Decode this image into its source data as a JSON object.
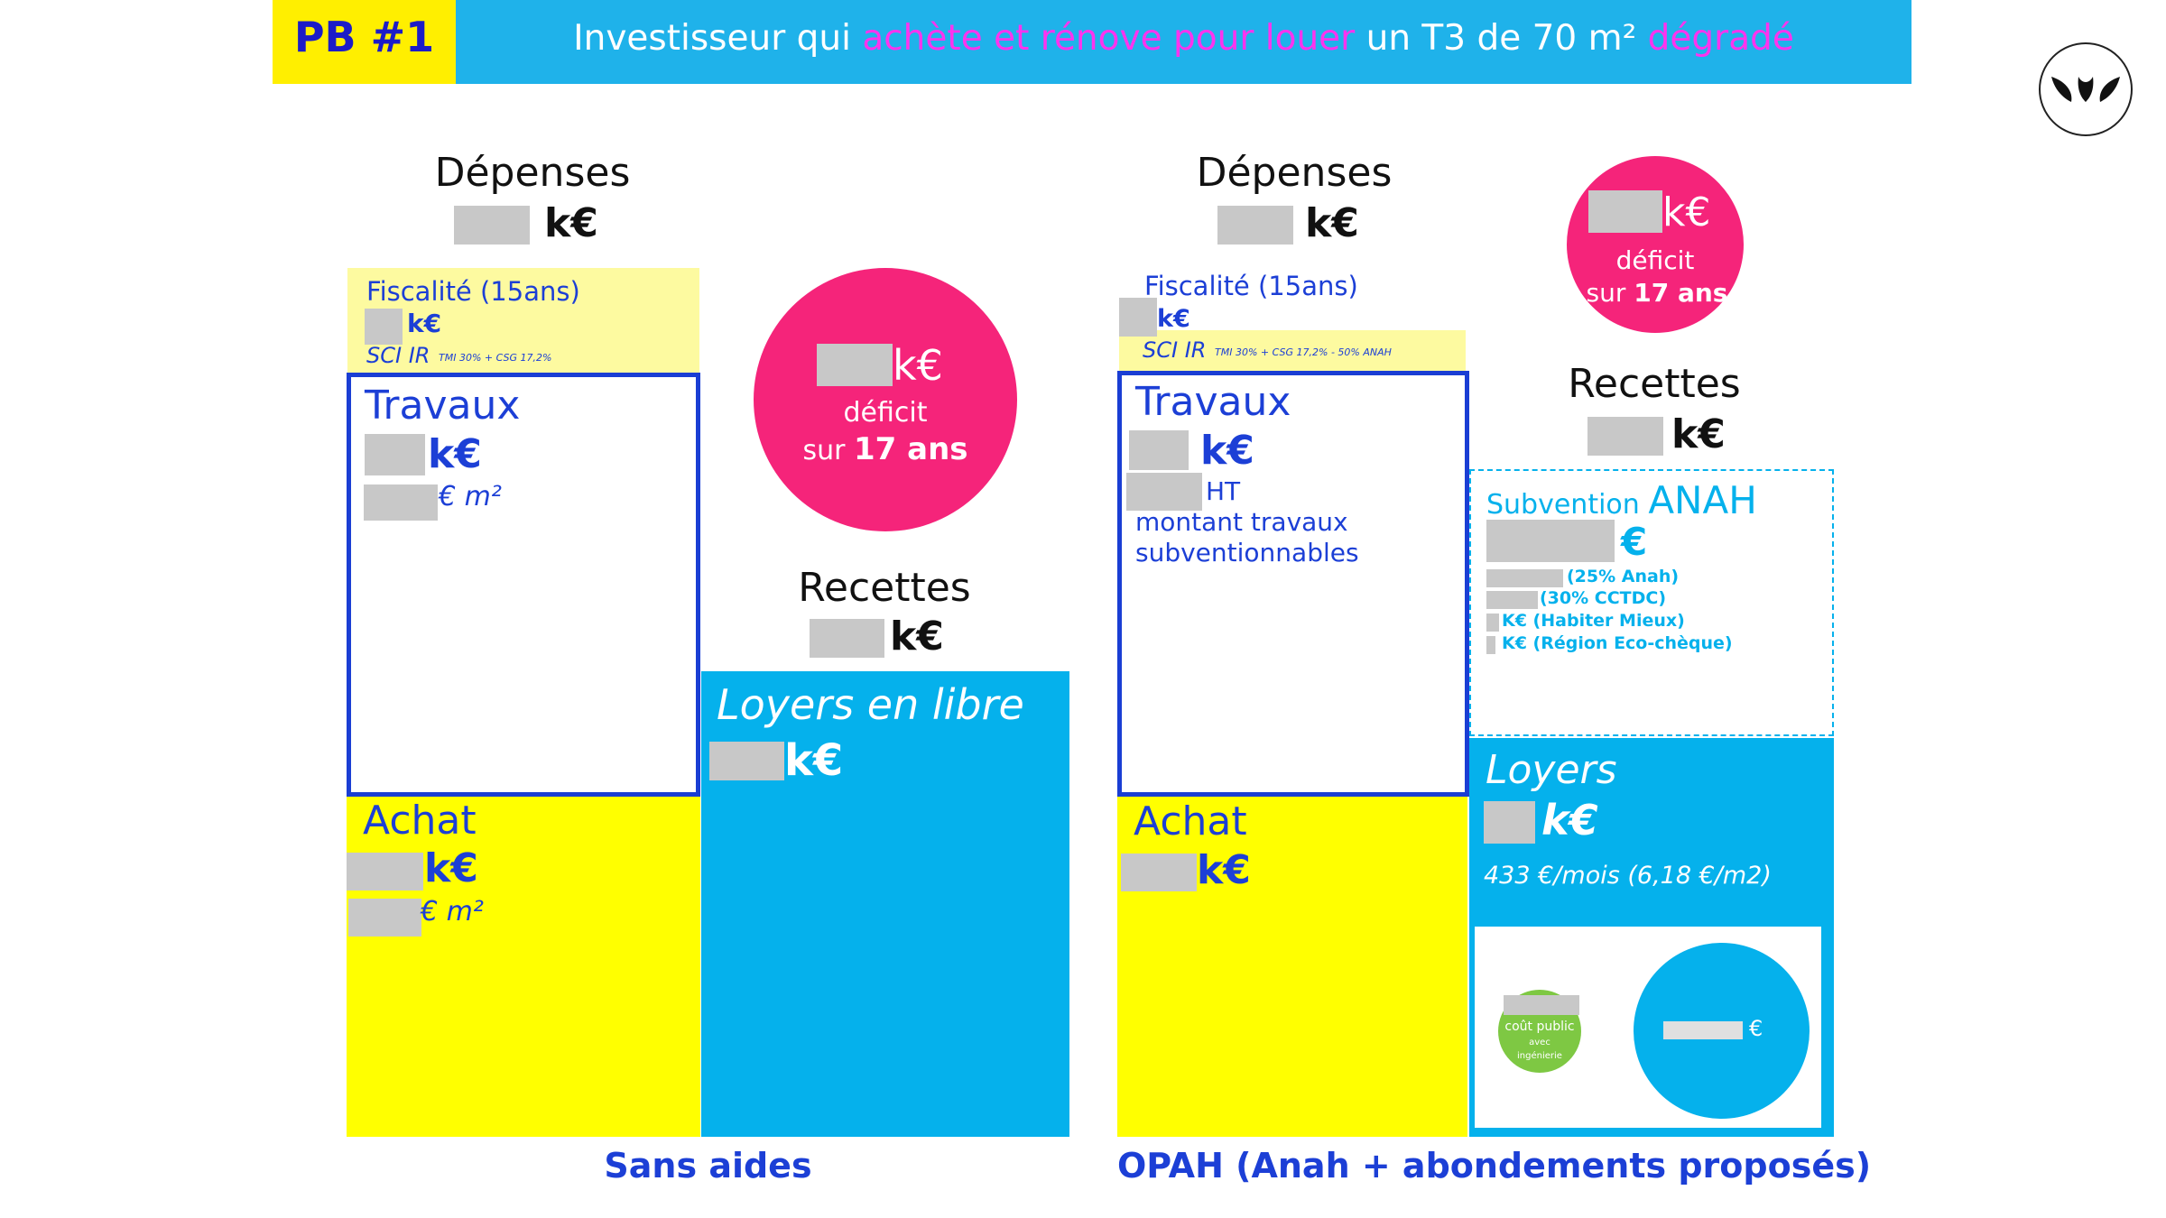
{
  "header": {
    "tag": "PB #1",
    "title_part1": "Investisseur qui ",
    "title_highlight1": "achète et rénove pour louer",
    "title_part2": " un T3 de 70 m² ",
    "title_highlight2": "dégradé"
  },
  "logo": {
    "icon": "leaf-logo-icon"
  },
  "left": {
    "depenses_title": "Dépenses",
    "depenses_unit": "k€",
    "fiscalite_title": "Fiscalité (15ans)",
    "fiscalite_unit": "k€",
    "fiscalite_regime": "SCI IR",
    "fiscalite_detail": "TMI 30% + CSG 17,2%",
    "travaux_title": "Travaux",
    "travaux_unit": "k€",
    "travaux_m2": "€ m²",
    "achat_title": "Achat",
    "achat_unit": "k€",
    "achat_m2": "€ m²",
    "deficit_unit": "k€",
    "deficit_label": "déficit",
    "deficit_sur": "sur ",
    "deficit_years": "17 ans",
    "recettes_title": "Recettes",
    "recettes_unit": "k€",
    "loyers_title": "Loyers en libre",
    "loyers_unit": "k€",
    "caption": "Sans aides"
  },
  "right": {
    "depenses_title": "Dépenses",
    "depenses_unit": "k€",
    "deficit_unit": "k€",
    "deficit_label": "déficit",
    "deficit_sur": "sur ",
    "deficit_years": "17 ans",
    "fiscalite_title": "Fiscalité (15ans)",
    "fiscalite_unit": "k€",
    "fiscalite_regime": "SCI IR",
    "fiscalite_detail": "TMI 30% + CSG 17,2% - 50% ANAH",
    "travaux_title": "Travaux",
    "travaux_unit": "k€",
    "travaux_ht": "HT",
    "travaux_note1": "montant travaux",
    "travaux_note2": "subventionnables",
    "achat_title": "Achat",
    "achat_unit": "k€",
    "recettes_title": "Recettes",
    "recettes_unit": "k€",
    "subvention_prefix": "Subvention ",
    "subvention_anah": "ANAH",
    "subvention_unit": "€",
    "subvention_lines": [
      "(25% Anah)",
      "(30% CCTDC)",
      "K€ (Habiter Mieux)",
      "K€ (Région Eco-chèque)"
    ],
    "loyers_title": "Loyers",
    "loyers_unit": "k€",
    "loyers_detail": "433 €/mois (6,18 €/m2)",
    "cout_public_label": "coût public",
    "cout_public_sub1": "avec",
    "cout_public_sub2": "ingénierie",
    "circle_unit": "€",
    "caption": "OPAH (Anah + abondements proposés)"
  },
  "colors": {
    "yellow": "#ffff00",
    "pale_yellow": "#fdfaa0",
    "cyan": "#05b1ec",
    "magenta": "#f5247a",
    "blue": "#1c3fd6",
    "green": "#7ec843"
  }
}
